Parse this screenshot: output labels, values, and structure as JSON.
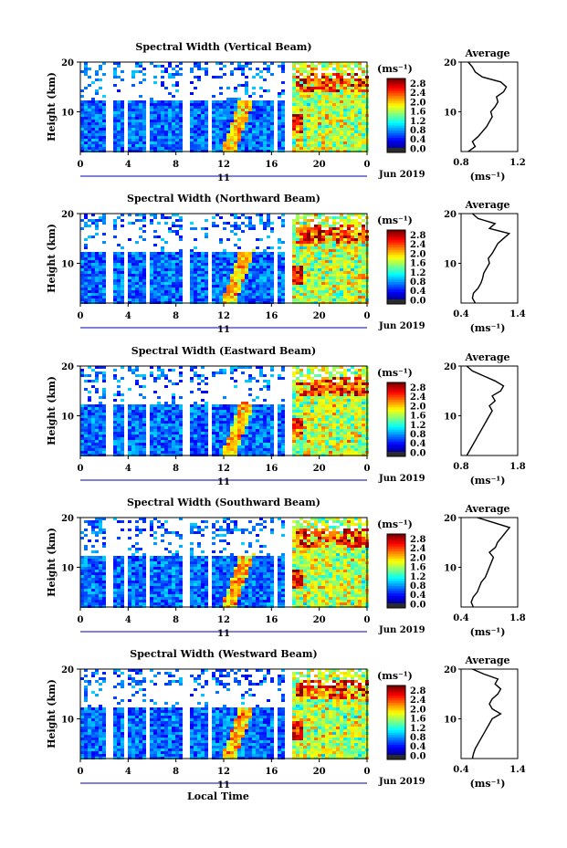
{
  "figure": {
    "xlabel": "Local Time",
    "date_label": "Jun 2019",
    "day_label": "11",
    "ylabel": "Height (km)",
    "colorbar_unit": "(ms⁻¹)",
    "colorbar_ticks": [
      "2.8",
      "2.4",
      "2.0",
      "1.6",
      "1.2",
      "0.8",
      "0.4",
      "0.0"
    ],
    "avg_title": "Average",
    "avg_xlabel": "(ms⁻¹)"
  },
  "chart_data": [
    {
      "type": "heatmap",
      "title": "Spectral Width (Vertical Beam)",
      "xlabel": "Local Time",
      "ylabel": "Height (km)",
      "xlim": [
        0,
        24
      ],
      "ylim": [
        2,
        20
      ],
      "xticks": [
        "0",
        "4",
        "8",
        "12",
        "16",
        "20",
        "0"
      ],
      "yticks": [
        "20",
        "10"
      ],
      "colorbar": {
        "label": "(ms⁻¹)",
        "range": [
          0.0,
          2.8
        ]
      },
      "data_gaps_hours": [
        [
          2.0,
          2.5
        ],
        [
          3.5,
          3.8
        ],
        [
          5.5,
          5.8
        ],
        [
          8.5,
          8.9
        ],
        [
          10.5,
          10.8
        ],
        [
          16.0,
          16.5
        ],
        [
          17.0,
          17.5
        ]
      ],
      "average_profile": {
        "title": "Average",
        "xlabel": "(ms⁻¹)",
        "xticks": [
          "0.8",
          "1.2"
        ],
        "xlim": [
          0.8,
          1.2
        ],
        "height": [
          2,
          3,
          4,
          5,
          6,
          7,
          8,
          9,
          10,
          11,
          12,
          13,
          14,
          15,
          16,
          17,
          18,
          19,
          20
        ],
        "value": [
          0.85,
          0.9,
          0.88,
          0.92,
          0.95,
          0.98,
          1.0,
          1.02,
          1.01,
          1.04,
          1.06,
          1.05,
          1.1,
          1.12,
          1.08,
          0.95,
          0.9,
          0.88,
          0.85
        ]
      }
    },
    {
      "type": "heatmap",
      "title": "Spectral Width (Northward Beam)",
      "xlabel": "Local Time",
      "ylabel": "Height (km)",
      "xlim": [
        0,
        24
      ],
      "ylim": [
        2,
        20
      ],
      "xticks": [
        "0",
        "4",
        "8",
        "12",
        "16",
        "20",
        "0"
      ],
      "yticks": [
        "20",
        "10"
      ],
      "colorbar": {
        "label": "(ms⁻¹)",
        "range": [
          0.0,
          2.8
        ]
      },
      "data_gaps_hours": [
        [
          2.0,
          2.5
        ],
        [
          3.5,
          3.8
        ],
        [
          5.5,
          5.8
        ],
        [
          8.5,
          8.9
        ],
        [
          10.5,
          10.8
        ],
        [
          16.0,
          16.5
        ],
        [
          17.0,
          17.5
        ]
      ],
      "average_profile": {
        "title": "Average",
        "xlabel": "(ms⁻¹)",
        "xticks": [
          "0.4",
          "1.4"
        ],
        "xlim": [
          0.4,
          1.4
        ],
        "height": [
          2,
          3,
          4,
          5,
          6,
          7,
          8,
          9,
          10,
          11,
          12,
          13,
          14,
          15,
          16,
          17,
          18,
          19,
          20
        ],
        "value": [
          0.65,
          0.6,
          0.62,
          0.7,
          0.75,
          0.78,
          0.8,
          0.85,
          0.9,
          0.88,
          0.95,
          1.0,
          1.05,
          1.15,
          1.25,
          0.9,
          1.0,
          0.7,
          0.6
        ]
      }
    },
    {
      "type": "heatmap",
      "title": "Spectral Width (Eastward Beam)",
      "xlabel": "Local Time",
      "ylabel": "Height (km)",
      "xlim": [
        0,
        24
      ],
      "ylim": [
        2,
        20
      ],
      "xticks": [
        "0",
        "4",
        "8",
        "12",
        "16",
        "20",
        "0"
      ],
      "yticks": [
        "20",
        "10"
      ],
      "colorbar": {
        "label": "(ms⁻¹)",
        "range": [
          0.0,
          2.8
        ]
      },
      "data_gaps_hours": [
        [
          2.0,
          2.5
        ],
        [
          3.5,
          3.8
        ],
        [
          5.5,
          5.8
        ],
        [
          8.5,
          8.9
        ],
        [
          10.5,
          10.8
        ],
        [
          16.0,
          16.5
        ],
        [
          17.0,
          17.5
        ]
      ],
      "average_profile": {
        "title": "Average",
        "xlabel": "(ms⁻¹)",
        "xticks": [
          "0.8",
          "1.8"
        ],
        "xlim": [
          0.8,
          1.8
        ],
        "height": [
          2,
          3,
          4,
          5,
          6,
          7,
          8,
          9,
          10,
          11,
          12,
          13,
          14,
          15,
          16,
          17,
          18,
          19,
          20
        ],
        "value": [
          0.9,
          0.95,
          1.0,
          1.05,
          1.1,
          1.15,
          1.2,
          1.25,
          1.3,
          1.35,
          1.3,
          1.4,
          1.35,
          1.5,
          1.55,
          1.4,
          1.2,
          1.0,
          0.9
        ]
      }
    },
    {
      "type": "heatmap",
      "title": "Spectral Width (Southward Beam)",
      "xlabel": "Local Time",
      "ylabel": "Height (km)",
      "xlim": [
        0,
        24
      ],
      "ylim": [
        2,
        20
      ],
      "xticks": [
        "0",
        "4",
        "8",
        "12",
        "16",
        "20",
        "0"
      ],
      "yticks": [
        "20",
        "10"
      ],
      "colorbar": {
        "label": "(ms⁻¹)",
        "range": [
          0.0,
          2.8
        ]
      },
      "data_gaps_hours": [
        [
          2.0,
          2.5
        ],
        [
          3.5,
          3.8
        ],
        [
          5.5,
          5.8
        ],
        [
          8.5,
          8.9
        ],
        [
          10.5,
          10.8
        ],
        [
          16.0,
          16.5
        ],
        [
          17.0,
          17.5
        ]
      ],
      "average_profile": {
        "title": "Average",
        "xlabel": "(ms⁻¹)",
        "xticks": [
          "0.4",
          "1.8"
        ],
        "xlim": [
          0.4,
          1.8
        ],
        "height": [
          2,
          3,
          4,
          5,
          6,
          7,
          8,
          9,
          10,
          11,
          12,
          13,
          14,
          15,
          16,
          17,
          18,
          19,
          20
        ],
        "value": [
          0.7,
          0.65,
          0.7,
          0.8,
          0.85,
          0.9,
          1.0,
          1.05,
          1.1,
          1.15,
          1.2,
          1.1,
          1.25,
          1.3,
          1.4,
          1.5,
          1.6,
          1.2,
          0.8
        ]
      }
    },
    {
      "type": "heatmap",
      "title": "Spectral Width (Westward Beam)",
      "xlabel": "Local Time",
      "ylabel": "Height (km)",
      "xlim": [
        0,
        24
      ],
      "ylim": [
        2,
        20
      ],
      "xticks": [
        "0",
        "4",
        "8",
        "12",
        "16",
        "20",
        "0"
      ],
      "yticks": [
        "20",
        "10"
      ],
      "colorbar": {
        "label": "(ms⁻¹)",
        "range": [
          0.0,
          2.8
        ]
      },
      "data_gaps_hours": [
        [
          2.0,
          2.5
        ],
        [
          3.5,
          3.8
        ],
        [
          5.5,
          5.8
        ],
        [
          8.5,
          8.9
        ],
        [
          10.5,
          10.8
        ],
        [
          16.0,
          16.5
        ],
        [
          17.0,
          17.5
        ]
      ],
      "average_profile": {
        "title": "Average",
        "xlabel": "(ms⁻¹)",
        "xticks": [
          "0.4",
          "1.4"
        ],
        "xlim": [
          0.4,
          1.4
        ],
        "height": [
          2,
          3,
          4,
          5,
          6,
          7,
          8,
          9,
          10,
          11,
          12,
          13,
          14,
          15,
          16,
          17,
          18,
          19,
          20
        ],
        "value": [
          0.6,
          0.62,
          0.65,
          0.7,
          0.75,
          0.8,
          0.85,
          0.9,
          0.95,
          1.1,
          0.95,
          0.9,
          0.95,
          1.05,
          1.1,
          1.0,
          1.05,
          0.8,
          0.6
        ]
      }
    }
  ]
}
